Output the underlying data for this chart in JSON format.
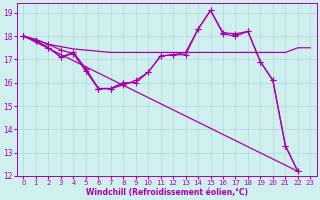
{
  "xlabel": "Windchill (Refroidissement éolien,°C)",
  "xlim": [
    -0.5,
    23.5
  ],
  "ylim": [
    12,
    19.4
  ],
  "yticks": [
    12,
    13,
    14,
    15,
    16,
    17,
    18,
    19
  ],
  "xticks": [
    0,
    1,
    2,
    3,
    4,
    5,
    6,
    7,
    8,
    9,
    10,
    11,
    12,
    13,
    14,
    15,
    16,
    17,
    18,
    19,
    20,
    21,
    22,
    23
  ],
  "bg_color": "#d0f0f0",
  "grid_color": "#b0dada",
  "line_color": "#aa00aa",
  "line1_y": [
    18.0,
    17.85,
    17.65,
    17.55,
    17.45,
    17.4,
    17.35,
    17.3,
    17.3,
    17.3,
    17.3,
    17.3,
    17.3,
    17.3,
    17.3,
    17.3,
    17.3,
    17.3,
    17.3,
    17.3,
    17.3,
    17.3,
    17.5,
    17.5
  ],
  "line2_x": [
    0,
    1,
    2,
    3,
    4,
    5,
    6,
    7,
    8,
    9,
    10,
    11,
    12,
    13,
    14,
    15,
    16,
    17,
    18,
    19,
    20,
    21,
    22
  ],
  "line2_y": [
    18.0,
    17.85,
    17.65,
    17.4,
    17.25,
    16.5,
    15.75,
    15.75,
    15.9,
    16.1,
    16.45,
    17.15,
    17.2,
    17.2,
    18.3,
    19.1,
    18.15,
    18.1,
    18.2,
    16.9,
    16.1,
    13.3,
    12.2
  ],
  "line3_x": [
    0,
    1,
    2,
    3,
    4,
    5,
    6,
    7,
    8
  ],
  "line3_y": [
    18.0,
    17.8,
    17.5,
    17.1,
    17.3,
    16.6,
    15.75,
    15.75,
    16.0
  ],
  "line4_x": [
    0,
    1,
    2,
    3,
    4,
    5,
    6,
    7,
    8,
    9,
    10,
    11,
    12,
    13,
    14,
    15,
    16,
    17,
    18,
    19,
    20,
    21,
    22
  ],
  "line4_y": [
    18.0,
    17.8,
    17.5,
    17.1,
    17.25,
    16.6,
    15.75,
    15.75,
    16.0,
    16.0,
    16.45,
    17.15,
    17.2,
    17.3,
    18.3,
    19.1,
    18.1,
    18.0,
    18.2,
    16.9,
    16.1,
    13.3,
    12.2
  ],
  "line5_x": [
    0,
    22
  ],
  "line5_y": [
    18.0,
    12.2
  ]
}
